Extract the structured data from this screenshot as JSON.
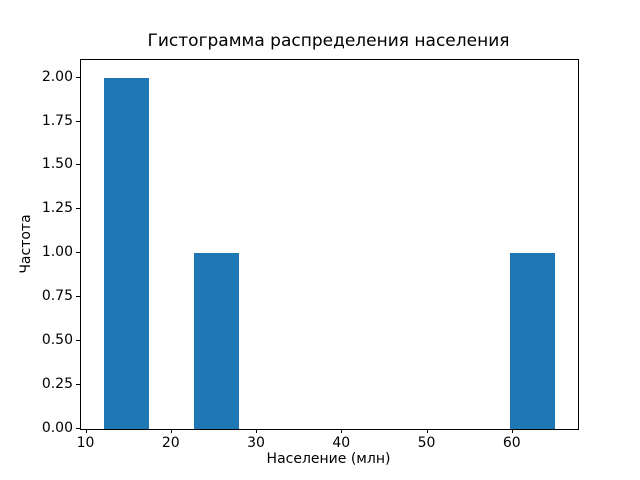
{
  "chart_data": {
    "type": "bar",
    "subtype": "histogram",
    "title": "Гистограмма распределения населения",
    "xlabel": "Население (млн)",
    "ylabel": "Частота",
    "bar_color": "#1f77b4",
    "grid": false,
    "legend": null,
    "bin_edges": [
      12.0,
      17.3,
      22.6,
      27.9,
      33.2,
      38.5,
      43.8,
      49.1,
      54.4,
      59.7,
      65.0
    ],
    "values": [
      2,
      0,
      1,
      0,
      0,
      0,
      0,
      0,
      0,
      1
    ],
    "xtick_labels": [
      "10",
      "20",
      "30",
      "40",
      "50",
      "60"
    ],
    "ytick_labels": [
      "0.00",
      "0.25",
      "0.50",
      "0.75",
      "1.00",
      "1.25",
      "1.50",
      "1.75",
      "2.00"
    ],
    "xlim": [
      9.35,
      67.65
    ],
    "ylim": [
      0,
      2.1
    ]
  }
}
